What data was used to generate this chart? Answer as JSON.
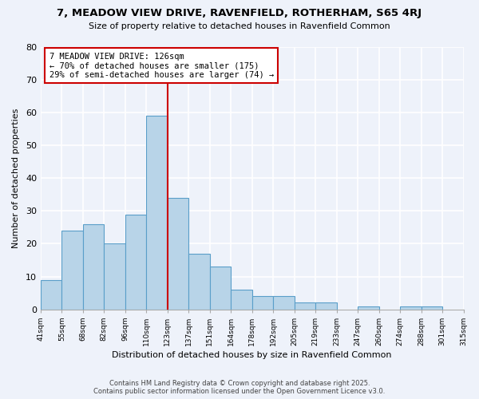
{
  "title": "7, MEADOW VIEW DRIVE, RAVENFIELD, ROTHERHAM, S65 4RJ",
  "subtitle": "Size of property relative to detached houses in Ravenfield Common",
  "xlabel": "Distribution of detached houses by size in Ravenfield Common",
  "ylabel": "Number of detached properties",
  "bar_values": [
    9,
    24,
    26,
    20,
    29,
    59,
    34,
    17,
    13,
    6,
    4,
    4,
    2,
    2,
    0,
    1,
    0,
    1,
    1,
    0
  ],
  "x_labels": [
    "41sqm",
    "55sqm",
    "68sqm",
    "82sqm",
    "96sqm",
    "110sqm",
    "123sqm",
    "137sqm",
    "151sqm",
    "164sqm",
    "178sqm",
    "192sqm",
    "205sqm",
    "219sqm",
    "233sqm",
    "247sqm",
    "260sqm",
    "274sqm",
    "288sqm",
    "301sqm",
    "315sqm"
  ],
  "bar_color": "#b8d4e8",
  "bar_edge_color": "#5a9ec9",
  "background_color": "#eef2fa",
  "grid_color": "#ffffff",
  "ylim": [
    0,
    80
  ],
  "yticks": [
    0,
    10,
    20,
    30,
    40,
    50,
    60,
    70,
    80
  ],
  "property_line_color": "#cc0000",
  "annotation_text": "7 MEADOW VIEW DRIVE: 126sqm\n← 70% of detached houses are smaller (175)\n29% of semi-detached houses are larger (74) →",
  "annotation_box_edge": "#cc0000",
  "footer_line1": "Contains HM Land Registry data © Crown copyright and database right 2025.",
  "footer_line2": "Contains public sector information licensed under the Open Government Licence v3.0."
}
